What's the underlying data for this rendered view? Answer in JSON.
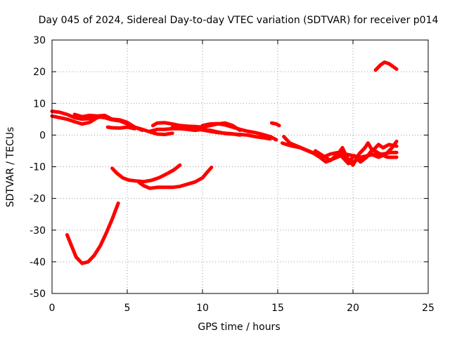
{
  "chart_data": {
    "type": "scatter",
    "title": "Day 045 of 2024, Sidereal Day-to-day VTEC variation (SDTVAR) for receiver p014",
    "xlabel": "GPS time / hours",
    "ylabel": "SDTVAR / TECUs",
    "xlim": [
      0,
      25
    ],
    "ylim": [
      -50,
      30
    ],
    "xticks": [
      0,
      5,
      10,
      15,
      20,
      25
    ],
    "yticks": [
      -50,
      -40,
      -30,
      -20,
      -10,
      0,
      10,
      20,
      30
    ],
    "xtick_labels": [
      "0",
      "5",
      "10",
      "15",
      "20",
      "25"
    ],
    "ytick_labels": [
      "-50",
      "-40",
      "-30",
      "-20",
      "-10",
      "0",
      "10",
      "20",
      "30"
    ],
    "grid": true,
    "series_color": "#ff0000",
    "series": [
      {
        "name": "arc-main-1",
        "points": [
          [
            0,
            7.5
          ],
          [
            0.5,
            7.2
          ],
          [
            1,
            6.5
          ],
          [
            1.5,
            5.5
          ],
          [
            2,
            5
          ],
          [
            2.5,
            5.2
          ],
          [
            3,
            5.8
          ],
          [
            3.5,
            5.5
          ],
          [
            4,
            4.8
          ],
          [
            4.5,
            4.5
          ],
          [
            5,
            3.5
          ],
          [
            5.5,
            2.5
          ],
          [
            6,
            1.8
          ],
          [
            6.5,
            1
          ],
          [
            7,
            0.3
          ],
          [
            7.5,
            0.2
          ],
          [
            8,
            0.6
          ]
        ]
      },
      {
        "name": "arc-main-2",
        "points": [
          [
            0,
            6
          ],
          [
            0.5,
            5.5
          ],
          [
            1,
            5
          ],
          [
            1.5,
            4.2
          ],
          [
            2,
            3.5
          ],
          [
            2.5,
            4
          ],
          [
            3,
            5.5
          ],
          [
            3.5,
            6
          ],
          [
            4,
            5
          ],
          [
            4.5,
            4.8
          ],
          [
            5,
            4
          ],
          [
            5.5,
            2.5
          ],
          [
            6,
            1.5
          ]
        ]
      },
      {
        "name": "arc-main-3",
        "points": [
          [
            1.5,
            6.5
          ],
          [
            2,
            5.8
          ],
          [
            2.5,
            6.2
          ],
          [
            3,
            6
          ],
          [
            3.5,
            6.2
          ],
          [
            3.8,
            5.5
          ]
        ]
      },
      {
        "name": "arc-main-4",
        "points": [
          [
            3.7,
            2.5
          ],
          [
            4,
            2.3
          ],
          [
            4.5,
            2.2
          ],
          [
            5,
            2.5
          ],
          [
            5.5,
            2
          ]
        ]
      },
      {
        "name": "arc-main-5",
        "points": [
          [
            6.7,
            3
          ],
          [
            7,
            3.8
          ],
          [
            7.5,
            3.9
          ],
          [
            8,
            3.5
          ],
          [
            8.5,
            3
          ],
          [
            9,
            2.8
          ],
          [
            9.5,
            2.7
          ],
          [
            10,
            2.5
          ],
          [
            10.5,
            3
          ],
          [
            11,
            3.5
          ],
          [
            11.5,
            3.8
          ],
          [
            12,
            3
          ],
          [
            12.5,
            1.5
          ]
        ]
      },
      {
        "name": "arc-main-6",
        "points": [
          [
            6.5,
            1.2
          ],
          [
            7,
            1.8
          ],
          [
            7.5,
            1.8
          ],
          [
            8,
            2
          ],
          [
            8.5,
            2
          ],
          [
            9,
            1.8
          ],
          [
            9.5,
            1.5
          ],
          [
            10,
            1.8
          ],
          [
            10.5,
            1.5
          ],
          [
            11,
            1
          ],
          [
            11.5,
            0.5
          ],
          [
            12,
            0.3
          ],
          [
            12.5,
            0.2
          ],
          [
            13,
            0
          ],
          [
            13.5,
            -0.5
          ],
          [
            14,
            -0.8
          ],
          [
            14.5,
            -1.2
          ]
        ]
      },
      {
        "name": "arc-main-7",
        "points": [
          [
            8,
            2.5
          ],
          [
            8.5,
            2.4
          ],
          [
            9,
            2.2
          ],
          [
            9.5,
            2
          ],
          [
            10,
            1.6
          ],
          [
            10.5,
            1.2
          ],
          [
            11,
            0.8
          ],
          [
            11.5,
            0.6
          ],
          [
            12,
            0.4
          ],
          [
            12.5,
            0
          ]
        ]
      },
      {
        "name": "arc-main-8",
        "points": [
          [
            10,
            3
          ],
          [
            10.5,
            3.5
          ],
          [
            11,
            3.6
          ],
          [
            11.5,
            3.2
          ],
          [
            12,
            2.5
          ],
          [
            12.5,
            1.8
          ],
          [
            13,
            1.2
          ],
          [
            13.5,
            0.8
          ],
          [
            14,
            0.2
          ],
          [
            14.5,
            -0.5
          ],
          [
            14.9,
            -1.5
          ]
        ]
      },
      {
        "name": "arc-short-a",
        "points": [
          [
            14.6,
            3.8
          ],
          [
            14.9,
            3.5
          ],
          [
            15.1,
            3
          ]
        ]
      },
      {
        "name": "arc-late-1",
        "points": [
          [
            15.3,
            -2.5
          ],
          [
            15.6,
            -3
          ],
          [
            16,
            -3.5
          ],
          [
            16.5,
            -4
          ],
          [
            17,
            -5
          ],
          [
            17.5,
            -6
          ],
          [
            18,
            -7
          ],
          [
            18.5,
            -6
          ],
          [
            19,
            -5.5
          ],
          [
            19.5,
            -6
          ],
          [
            20,
            -6.5
          ],
          [
            20.5,
            -7
          ],
          [
            21,
            -6.5
          ],
          [
            21.5,
            -6
          ],
          [
            22,
            -6
          ],
          [
            22.5,
            -5.5
          ],
          [
            22.9,
            -5.5
          ]
        ]
      },
      {
        "name": "arc-late-2",
        "points": [
          [
            15.4,
            -0.5
          ],
          [
            15.8,
            -2.5
          ],
          [
            16.3,
            -3.5
          ],
          [
            16.8,
            -4.5
          ],
          [
            17.3,
            -5.5
          ],
          [
            17.8,
            -7
          ],
          [
            18.2,
            -8.5
          ],
          [
            18.7,
            -7.5
          ],
          [
            19.2,
            -6.5
          ],
          [
            19.7,
            -9
          ],
          [
            20.2,
            -8
          ],
          [
            20.7,
            -7
          ],
          [
            21.2,
            -6
          ],
          [
            21.7,
            -7
          ],
          [
            22.2,
            -6
          ],
          [
            22.6,
            -4
          ],
          [
            22.9,
            -2
          ]
        ]
      },
      {
        "name": "arc-late-3",
        "points": [
          [
            17.5,
            -5
          ],
          [
            18,
            -6.5
          ],
          [
            18.5,
            -8
          ],
          [
            19,
            -6
          ],
          [
            19.3,
            -4
          ],
          [
            19.6,
            -7
          ],
          [
            20,
            -9.5
          ],
          [
            20.4,
            -6
          ],
          [
            20.8,
            -4
          ],
          [
            21,
            -2.5
          ],
          [
            21.3,
            -5
          ],
          [
            21.7,
            -3
          ],
          [
            22,
            -4
          ],
          [
            22.4,
            -3
          ],
          [
            22.9,
            -3.5
          ]
        ]
      },
      {
        "name": "arc-late-4",
        "points": [
          [
            19.2,
            -5
          ],
          [
            19.5,
            -7
          ],
          [
            19.8,
            -8
          ],
          [
            20.1,
            -6.5
          ],
          [
            20.5,
            -8.5
          ],
          [
            20.9,
            -7
          ],
          [
            21.3,
            -4.5
          ],
          [
            21.8,
            -6
          ],
          [
            22.3,
            -7
          ],
          [
            22.9,
            -7
          ]
        ]
      },
      {
        "name": "arc-high",
        "points": [
          [
            21.5,
            20.5
          ],
          [
            21.8,
            22
          ],
          [
            22.1,
            23
          ],
          [
            22.4,
            22.5
          ],
          [
            22.7,
            21.5
          ],
          [
            22.9,
            20.8
          ]
        ]
      },
      {
        "name": "arc-mid-1",
        "points": [
          [
            4,
            -10.5
          ],
          [
            4.3,
            -12
          ],
          [
            4.7,
            -13.5
          ],
          [
            5.1,
            -14.2
          ],
          [
            5.6,
            -14.5
          ],
          [
            6.1,
            -14.7
          ],
          [
            6.6,
            -14.3
          ],
          [
            7.1,
            -13.5
          ],
          [
            7.6,
            -12.3
          ],
          [
            8.1,
            -11
          ],
          [
            8.5,
            -9.5
          ]
        ]
      },
      {
        "name": "arc-mid-2",
        "points": [
          [
            5.8,
            -15
          ],
          [
            6.1,
            -16
          ],
          [
            6.5,
            -16.8
          ],
          [
            7,
            -16.5
          ],
          [
            7.5,
            -16.5
          ],
          [
            8,
            -16.5
          ],
          [
            8.5,
            -16.2
          ],
          [
            9,
            -15.5
          ],
          [
            9.5,
            -14.8
          ],
          [
            10,
            -13.5
          ],
          [
            10.3,
            -11.8
          ],
          [
            10.6,
            -10.2
          ]
        ]
      },
      {
        "name": "arc-low",
        "points": [
          [
            1,
            -31.5
          ],
          [
            1.3,
            -35
          ],
          [
            1.6,
            -38.5
          ],
          [
            2,
            -40.5
          ],
          [
            2.4,
            -40
          ],
          [
            2.8,
            -38
          ],
          [
            3.2,
            -35
          ],
          [
            3.6,
            -31
          ],
          [
            4,
            -26.5
          ],
          [
            4.4,
            -21.5
          ]
        ]
      }
    ]
  }
}
